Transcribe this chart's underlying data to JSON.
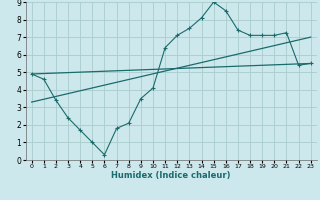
{
  "xlabel": "Humidex (Indice chaleur)",
  "bg_color": "#cde8ec",
  "grid_color": "#aacccc",
  "line_color": "#1a6b6b",
  "xlim": [
    -0.5,
    23.5
  ],
  "ylim": [
    0,
    9
  ],
  "xticks": [
    0,
    1,
    2,
    3,
    4,
    5,
    6,
    7,
    8,
    9,
    10,
    11,
    12,
    13,
    14,
    15,
    16,
    17,
    18,
    19,
    20,
    21,
    22,
    23
  ],
  "yticks": [
    0,
    1,
    2,
    3,
    4,
    5,
    6,
    7,
    8,
    9
  ],
  "curve1_x": [
    0,
    1,
    2,
    3,
    4,
    5,
    6,
    7,
    8,
    9,
    10,
    11,
    12,
    13,
    14,
    15,
    16,
    17,
    18,
    19,
    20,
    21,
    22,
    23
  ],
  "curve1_y": [
    4.9,
    4.6,
    3.4,
    2.4,
    1.7,
    1.0,
    0.3,
    1.8,
    2.1,
    3.5,
    4.1,
    6.4,
    7.1,
    7.5,
    8.1,
    9.0,
    8.5,
    7.4,
    7.1,
    7.1,
    7.1,
    7.25,
    5.4,
    5.5
  ],
  "line2_x": [
    0,
    23
  ],
  "line2_y": [
    4.9,
    5.5
  ],
  "line3_x": [
    0,
    23
  ],
  "line3_y": [
    3.3,
    7.0
  ]
}
